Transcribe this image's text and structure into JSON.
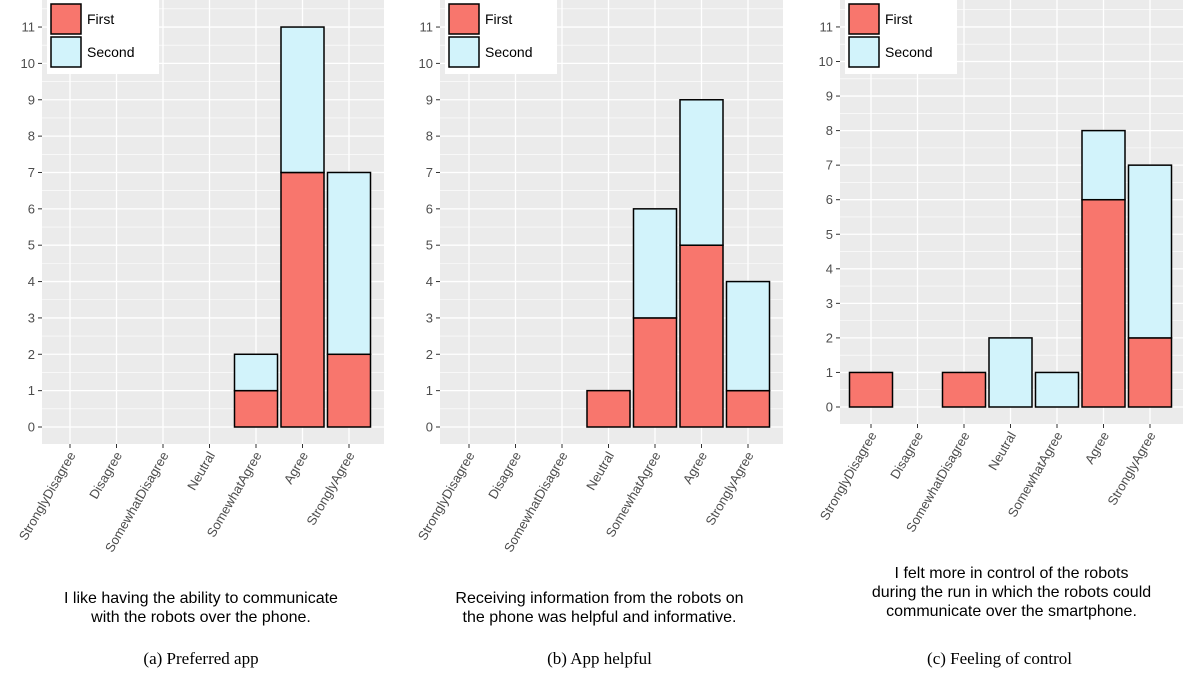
{
  "colors": {
    "first": "#f8766d",
    "second": "#d2f3fb",
    "panel": "#ebebeb",
    "grid": "#ffffff",
    "bar_edge": "#000000"
  },
  "chart_data": [
    {
      "type": "bar",
      "stacked": true,
      "categories": [
        "StronglyDisagree",
        "Disagree",
        "SomewhatDisagree",
        "Neutral",
        "SomewhatAgree",
        "Agree",
        "StronglyAgree"
      ],
      "series": [
        {
          "name": "First",
          "values": [
            0,
            0,
            0,
            0,
            1,
            7,
            2
          ]
        },
        {
          "name": "Second",
          "values": [
            0,
            0,
            0,
            0,
            1,
            4,
            5
          ]
        }
      ],
      "ylim": [
        0,
        11
      ],
      "yticks": [
        0,
        1,
        2,
        3,
        4,
        5,
        6,
        7,
        8,
        9,
        10,
        11
      ],
      "xlabel_lines": [
        "I like having the ability to communicate",
        "with the robots over the phone."
      ],
      "caption": "(a) Preferred app",
      "legend": "top-left",
      "grid": true
    },
    {
      "type": "bar",
      "stacked": true,
      "categories": [
        "StronglyDisagree",
        "Disagree",
        "SomewhatDisagree",
        "Neutral",
        "SomewhatAgree",
        "Agree",
        "StronglyAgree"
      ],
      "series": [
        {
          "name": "First",
          "values": [
            0,
            0,
            0,
            1,
            3,
            5,
            1
          ]
        },
        {
          "name": "Second",
          "values": [
            0,
            0,
            0,
            0,
            3,
            4,
            3
          ]
        }
      ],
      "ylim": [
        0,
        11
      ],
      "yticks": [
        0,
        1,
        2,
        3,
        4,
        5,
        6,
        7,
        8,
        9,
        10,
        11
      ],
      "xlabel_lines": [
        "Receiving information from the robots on",
        "the phone was helpful and informative."
      ],
      "caption": "(b) App helpful",
      "legend": "top-left",
      "grid": true
    },
    {
      "type": "bar",
      "stacked": true,
      "categories": [
        "StronglyDisagree",
        "Disagree",
        "SomewhatDisagree",
        "Neutral",
        "SomewhatAgree",
        "Agree",
        "StronglyAgree"
      ],
      "series": [
        {
          "name": "First",
          "values": [
            1,
            0,
            1,
            0,
            0,
            6,
            2
          ]
        },
        {
          "name": "Second",
          "values": [
            0,
            0,
            0,
            2,
            1,
            2,
            5
          ]
        }
      ],
      "ylim": [
        0,
        11
      ],
      "yticks": [
        0,
        1,
        2,
        3,
        4,
        5,
        6,
        7,
        8,
        9,
        10,
        11
      ],
      "xlabel_lines": [
        "I felt more in control of the robots",
        "during the run in which the robots could",
        "communicate over the smartphone."
      ],
      "caption": "(c) Feeling of control",
      "legend": "top-left",
      "grid": true
    }
  ]
}
